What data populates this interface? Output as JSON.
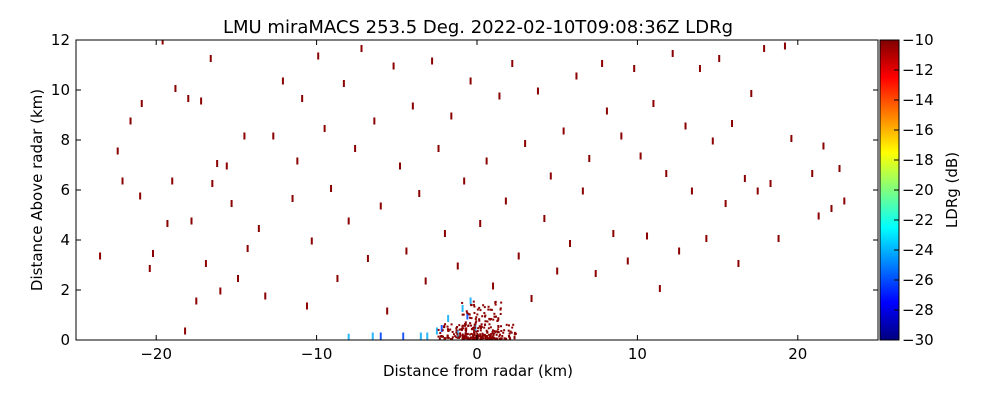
{
  "chart_data": {
    "type": "scatter",
    "title": "LMU miraMACS 253.5 Deg. 2022-02-10T09:08:36Z  LDRg",
    "xlabel": "Distance from radar (km)",
    "ylabel": "Distance Above radar  (km)",
    "xlim": [
      -25,
      25
    ],
    "ylim": [
      0,
      12
    ],
    "xticks": [
      -20,
      -10,
      0,
      10,
      20
    ],
    "yticks": [
      0,
      2,
      4,
      6,
      8,
      10,
      12
    ],
    "grid": false,
    "colorbar": {
      "label": "LDRg (dB)",
      "range": [
        -30,
        -10
      ],
      "ticks": [
        -10,
        -12,
        -14,
        -16,
        -18,
        -20,
        -22,
        -24,
        -26,
        -28,
        -30
      ],
      "colormap": "jet"
    },
    "colors": {
      "dominant_echo": "#8b0000",
      "cyan_echo": "#29b6f6",
      "blue_echo": "#1e5bff"
    },
    "note_points": "Sparse speckle echoes scattered across the RHI scan; densest near radar at 0-2 km range.",
    "points": [
      {
        "x": -23.5,
        "y": 3.3,
        "v": -11
      },
      {
        "x": -22.4,
        "y": 7.5,
        "v": -11
      },
      {
        "x": -22.1,
        "y": 6.3,
        "v": -11
      },
      {
        "x": -21.6,
        "y": 8.7,
        "v": -11
      },
      {
        "x": -21.0,
        "y": 5.7,
        "v": -11
      },
      {
        "x": -20.9,
        "y": 9.4,
        "v": -11
      },
      {
        "x": -20.4,
        "y": 2.8,
        "v": -11
      },
      {
        "x": -20.2,
        "y": 3.4,
        "v": -11
      },
      {
        "x": -19.6,
        "y": 11.9,
        "v": -11
      },
      {
        "x": -19.3,
        "y": 4.6,
        "v": -11
      },
      {
        "x": -19.0,
        "y": 6.3,
        "v": -11
      },
      {
        "x": -18.8,
        "y": 10.0,
        "v": -11
      },
      {
        "x": -18.2,
        "y": 0.3,
        "v": -11
      },
      {
        "x": -18.0,
        "y": 9.6,
        "v": -11
      },
      {
        "x": -17.8,
        "y": 4.7,
        "v": -11
      },
      {
        "x": -17.5,
        "y": 1.5,
        "v": -11
      },
      {
        "x": -17.2,
        "y": 9.5,
        "v": -11
      },
      {
        "x": -16.9,
        "y": 3.0,
        "v": -11
      },
      {
        "x": -16.6,
        "y": 11.2,
        "v": -11
      },
      {
        "x": -16.5,
        "y": 6.2,
        "v": -11
      },
      {
        "x": -16.2,
        "y": 7.0,
        "v": -11
      },
      {
        "x": -16.0,
        "y": 1.9,
        "v": -11
      },
      {
        "x": -15.6,
        "y": 6.9,
        "v": -11
      },
      {
        "x": -15.3,
        "y": 5.4,
        "v": -11
      },
      {
        "x": -14.9,
        "y": 2.4,
        "v": -11
      },
      {
        "x": -14.5,
        "y": 8.1,
        "v": -11
      },
      {
        "x": -14.3,
        "y": 3.6,
        "v": -11
      },
      {
        "x": -13.6,
        "y": 4.4,
        "v": -11
      },
      {
        "x": -13.2,
        "y": 1.7,
        "v": -11
      },
      {
        "x": -12.7,
        "y": 8.1,
        "v": -11
      },
      {
        "x": -12.1,
        "y": 10.3,
        "v": -11
      },
      {
        "x": -11.5,
        "y": 5.6,
        "v": -11
      },
      {
        "x": -11.2,
        "y": 7.1,
        "v": -11
      },
      {
        "x": -10.9,
        "y": 9.6,
        "v": -11
      },
      {
        "x": -10.6,
        "y": 1.3,
        "v": -11
      },
      {
        "x": -10.3,
        "y": 3.9,
        "v": -11
      },
      {
        "x": -9.9,
        "y": 11.3,
        "v": -11
      },
      {
        "x": -9.5,
        "y": 8.4,
        "v": -11
      },
      {
        "x": -9.1,
        "y": 6.0,
        "v": -11
      },
      {
        "x": -8.7,
        "y": 2.4,
        "v": -11
      },
      {
        "x": -8.3,
        "y": 10.2,
        "v": -11
      },
      {
        "x": -8.0,
        "y": 4.7,
        "v": -11
      },
      {
        "x": -7.6,
        "y": 7.6,
        "v": -11
      },
      {
        "x": -7.2,
        "y": 11.6,
        "v": -11
      },
      {
        "x": -6.8,
        "y": 3.2,
        "v": -11
      },
      {
        "x": -6.4,
        "y": 8.7,
        "v": -11
      },
      {
        "x": -6.0,
        "y": 5.3,
        "v": -11
      },
      {
        "x": -5.6,
        "y": 1.1,
        "v": -11
      },
      {
        "x": -5.2,
        "y": 10.9,
        "v": -11
      },
      {
        "x": -4.8,
        "y": 6.9,
        "v": -11
      },
      {
        "x": -4.4,
        "y": 3.5,
        "v": -11
      },
      {
        "x": -4.0,
        "y": 9.3,
        "v": -11
      },
      {
        "x": -3.6,
        "y": 5.8,
        "v": -11
      },
      {
        "x": -3.2,
        "y": 2.3,
        "v": -11
      },
      {
        "x": -2.8,
        "y": 11.1,
        "v": -11
      },
      {
        "x": -2.4,
        "y": 7.6,
        "v": -11
      },
      {
        "x": -2.0,
        "y": 4.2,
        "v": -11
      },
      {
        "x": -1.6,
        "y": 8.9,
        "v": -11
      },
      {
        "x": -1.2,
        "y": 2.9,
        "v": -11
      },
      {
        "x": -0.8,
        "y": 6.3,
        "v": -11
      },
      {
        "x": -0.4,
        "y": 10.3,
        "v": -11
      },
      {
        "x": 0.2,
        "y": 4.6,
        "v": -11
      },
      {
        "x": 0.6,
        "y": 7.1,
        "v": -11
      },
      {
        "x": 1.0,
        "y": 2.1,
        "v": -11
      },
      {
        "x": 1.4,
        "y": 9.7,
        "v": -11
      },
      {
        "x": 1.8,
        "y": 5.5,
        "v": -11
      },
      {
        "x": 2.2,
        "y": 11.0,
        "v": -11
      },
      {
        "x": 2.6,
        "y": 3.3,
        "v": -11
      },
      {
        "x": 3.0,
        "y": 7.8,
        "v": -11
      },
      {
        "x": 3.4,
        "y": 1.6,
        "v": -11
      },
      {
        "x": 3.8,
        "y": 9.9,
        "v": -11
      },
      {
        "x": 4.2,
        "y": 4.8,
        "v": -11
      },
      {
        "x": 4.6,
        "y": 6.5,
        "v": -11
      },
      {
        "x": 5.0,
        "y": 2.7,
        "v": -11
      },
      {
        "x": 5.4,
        "y": 8.3,
        "v": -11
      },
      {
        "x": 5.8,
        "y": 3.8,
        "v": -11
      },
      {
        "x": 6.2,
        "y": 10.5,
        "v": -11
      },
      {
        "x": 6.6,
        "y": 5.9,
        "v": -11
      },
      {
        "x": 7.0,
        "y": 7.2,
        "v": -11
      },
      {
        "x": 7.4,
        "y": 2.6,
        "v": -11
      },
      {
        "x": 7.8,
        "y": 11.0,
        "v": -11
      },
      {
        "x": 8.1,
        "y": 9.1,
        "v": -11
      },
      {
        "x": 8.5,
        "y": 4.2,
        "v": -11
      },
      {
        "x": 9.0,
        "y": 8.1,
        "v": -11
      },
      {
        "x": 9.4,
        "y": 3.1,
        "v": -11
      },
      {
        "x": 9.8,
        "y": 10.8,
        "v": -11
      },
      {
        "x": 10.2,
        "y": 7.3,
        "v": -11
      },
      {
        "x": 10.6,
        "y": 4.1,
        "v": -11
      },
      {
        "x": 11.0,
        "y": 9.4,
        "v": -11
      },
      {
        "x": 11.4,
        "y": 2.0,
        "v": -11
      },
      {
        "x": 11.8,
        "y": 6.6,
        "v": -11
      },
      {
        "x": 12.2,
        "y": 11.4,
        "v": -11
      },
      {
        "x": 12.6,
        "y": 3.5,
        "v": -11
      },
      {
        "x": 13.0,
        "y": 8.5,
        "v": -11
      },
      {
        "x": 13.4,
        "y": 5.9,
        "v": -11
      },
      {
        "x": 13.9,
        "y": 10.8,
        "v": -11
      },
      {
        "x": 14.3,
        "y": 4.0,
        "v": -11
      },
      {
        "x": 14.7,
        "y": 7.9,
        "v": -11
      },
      {
        "x": 15.1,
        "y": 11.2,
        "v": -11
      },
      {
        "x": 15.5,
        "y": 5.4,
        "v": -11
      },
      {
        "x": 15.9,
        "y": 8.6,
        "v": -11
      },
      {
        "x": 16.3,
        "y": 3.0,
        "v": -11
      },
      {
        "x": 16.7,
        "y": 6.4,
        "v": -11
      },
      {
        "x": 17.1,
        "y": 9.8,
        "v": -11
      },
      {
        "x": 17.5,
        "y": 5.9,
        "v": -11
      },
      {
        "x": 17.9,
        "y": 11.6,
        "v": -11
      },
      {
        "x": 18.3,
        "y": 6.2,
        "v": -11
      },
      {
        "x": 18.8,
        "y": 4.0,
        "v": -11
      },
      {
        "x": 19.2,
        "y": 11.7,
        "v": -11
      },
      {
        "x": 19.6,
        "y": 8.0,
        "v": -11
      },
      {
        "x": 20.9,
        "y": 6.6,
        "v": -11
      },
      {
        "x": 21.3,
        "y": 4.9,
        "v": -11
      },
      {
        "x": 21.6,
        "y": 7.7,
        "v": -11
      },
      {
        "x": 22.1,
        "y": 5.2,
        "v": -11
      },
      {
        "x": 22.6,
        "y": 6.8,
        "v": -11
      },
      {
        "x": 22.9,
        "y": 5.5,
        "v": -11
      },
      {
        "x": -3.5,
        "y": 0.1,
        "v": -22
      },
      {
        "x": -3.1,
        "y": 0.1,
        "v": -22
      },
      {
        "x": -2.5,
        "y": 0.3,
        "v": -22
      },
      {
        "x": -1.8,
        "y": 0.8,
        "v": -22
      },
      {
        "x": -1.2,
        "y": 0.2,
        "v": -22
      },
      {
        "x": -0.9,
        "y": 1.2,
        "v": -22
      },
      {
        "x": -0.4,
        "y": 1.5,
        "v": -22
      },
      {
        "x": -0.1,
        "y": 0.4,
        "v": -22
      },
      {
        "x": -6.5,
        "y": 0.1,
        "v": -22
      },
      {
        "x": -8.0,
        "y": 0.05,
        "v": -22
      },
      {
        "x": -6.0,
        "y": 0.1,
        "v": -26
      },
      {
        "x": -2.2,
        "y": 0.4,
        "v": -26
      },
      {
        "x": -0.6,
        "y": 0.9,
        "v": -26
      },
      {
        "x": -4.6,
        "y": 0.1,
        "v": -26
      }
    ],
    "dense_cluster": [
      {
        "x_range": [
          -2.5,
          2.5
        ],
        "y_range": [
          0,
          0.6
        ],
        "v": -11
      },
      {
        "x_range": [
          -1.0,
          1.5
        ],
        "y_range": [
          0,
          1.5
        ],
        "v": -11
      }
    ]
  }
}
